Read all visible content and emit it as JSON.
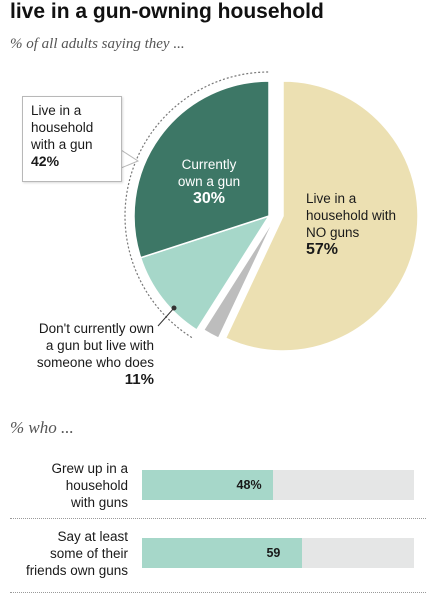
{
  "chart_data": [
    {
      "type": "pie",
      "title": "live in a gun-owning  household",
      "subtitle": "% of all adults saying they ...",
      "slices": [
        {
          "label": "Live in a household with NO guns",
          "value": 57
        },
        {
          "label": "Currently own a gun",
          "value": 30
        },
        {
          "label": "Don't currently own a gun but live with someone who does",
          "value": 11
        },
        {
          "label": "",
          "value": 2
        }
      ],
      "group_callout": {
        "label": "Live in a household with a gun",
        "value": 42
      }
    },
    {
      "type": "bar",
      "title": "% who ...",
      "categories": [
        "Grew up in a household with guns",
        "Say at least some of their friends own guns"
      ],
      "values": [
        48,
        59
      ],
      "xlim": [
        0,
        100
      ]
    }
  ],
  "text": {
    "title": "live in a gun-owning  household",
    "subtitle": "% of all adults saying they ...",
    "callout_l1": "Live in a",
    "callout_l2": "household",
    "callout_l3": "with a gun",
    "callout_pct": "42%",
    "own_l1": "Currently",
    "own_l2": "own a gun",
    "own_pct": "30%",
    "no_l1": "Live in a",
    "no_l2": "household with",
    "no_l3": "NO guns",
    "no_pct": "57%",
    "live_l1": "Don't currently own",
    "live_l2": "a gun but live with",
    "live_l3": "someone who does",
    "live_pct": "11%",
    "who": "% who ...",
    "bar1_l1": "Grew up in a",
    "bar1_l2": "household",
    "bar1_l3": "with guns",
    "bar1_value": "48%",
    "bar2_l1": "Say at least",
    "bar2_l2": "some of their",
    "bar2_l3": "friends own guns",
    "bar2_value": "59"
  },
  "colors": {
    "no_guns": "#ece0b2",
    "own": "#3d7766",
    "live_with": "#a6d7c9",
    "unclassified": "#bdbdbd",
    "bar_fill": "#a6d7c9",
    "bar_track": "#e5e6e6"
  }
}
